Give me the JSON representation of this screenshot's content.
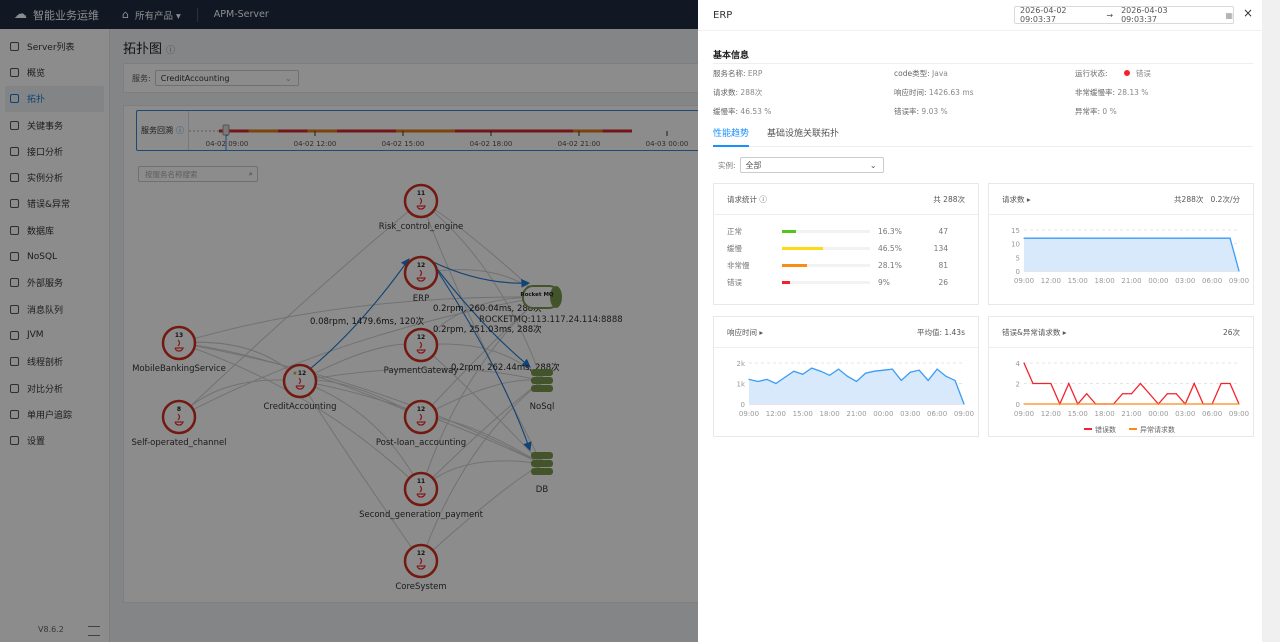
{
  "header": {
    "brand": "智能业务运维",
    "products": "所有产品",
    "app": "APM-Server"
  },
  "sidebar": {
    "items": [
      {
        "label": "Server列表"
      },
      {
        "label": "概览"
      },
      {
        "label": "拓扑",
        "active": true
      },
      {
        "label": "关键事务"
      },
      {
        "label": "接口分析"
      },
      {
        "label": "实例分析"
      },
      {
        "label": "错误&异常"
      },
      {
        "label": "数据库"
      },
      {
        "label": "NoSQL"
      },
      {
        "label": "外部服务"
      },
      {
        "label": "消息队列"
      },
      {
        "label": "JVM"
      },
      {
        "label": "线程剖析"
      },
      {
        "label": "对比分析"
      },
      {
        "label": "单用户追踪"
      },
      {
        "label": "设置"
      }
    ],
    "version": "V8.6.2"
  },
  "main": {
    "title": "拓扑图",
    "service_label": "服务:",
    "service_value": "CreditAccounting",
    "timeline_label": "服务回溯",
    "timeline_ticks": [
      "04-02 09:00",
      "04-02 12:00",
      "04-02 15:00",
      "04-02 18:00",
      "04-02 21:00",
      "04-03 00:00"
    ],
    "search_placeholder": "按服务名称搜索",
    "nodes": [
      {
        "name": "Risk_control_engine",
        "count": "11"
      },
      {
        "name": "ERP",
        "count": "12"
      },
      {
        "name": "PaymentGateway",
        "count": "12"
      },
      {
        "name": "Post-loan_accounting",
        "count": "12"
      },
      {
        "name": "Second_generation_payment",
        "count": "11"
      },
      {
        "name": "CoreSystem",
        "count": "12"
      },
      {
        "name": "MobileBankingService",
        "count": "13"
      },
      {
        "name": "Self-operated_channel",
        "count": "8"
      },
      {
        "name": "CreditAccounting",
        "count": "12"
      }
    ],
    "resources": {
      "mq_icon": "Rocket MQ",
      "mq": "ROCKETMQ:113.117.24.114:8888",
      "nosql": "NoSql",
      "db": "DB"
    },
    "edge_labels": [
      "0.08rpm, 1479.6ms, 120次",
      "0.2rpm, 260.04ms, 288次",
      "0.2rpm, 251.03ms, 288次",
      "0.2rpm, 262.44ms, 288次"
    ]
  },
  "drawer": {
    "title": "ERP",
    "date_start": "2026-04-02 09:03:37",
    "date_end": "2026-04-03 09:03:37",
    "close": "×",
    "basic_title": "基本信息",
    "info": [
      {
        "k": "服务名称:",
        "v": "ERP"
      },
      {
        "k": "code类型:",
        "v": "Java"
      },
      {
        "k": "运行状态:",
        "v": "错误"
      },
      {
        "k": "请求数:",
        "v": "288次"
      },
      {
        "k": "响应时间:",
        "v": "1426.63 ms"
      },
      {
        "k": "非常缓慢率:",
        "v": "28.13 %"
      },
      {
        "k": "缓慢率:",
        "v": "46.53 %"
      },
      {
        "k": "错误率:",
        "v": "9.03 %"
      },
      {
        "k": "异常率:",
        "v": "0 %"
      }
    ],
    "status_color": "#f5222d",
    "tabs": [
      "性能趋势",
      "基础设施关联拓扑"
    ],
    "instance_label": "实例:",
    "instance_value": "全部",
    "req_stats": {
      "title": "请求统计",
      "total": "共 288次",
      "rows": [
        {
          "label": "正常",
          "pct": "16.3%",
          "count": "47",
          "value": 16.3,
          "color": "#52c41a"
        },
        {
          "label": "缓慢",
          "pct": "46.5%",
          "count": "134",
          "value": 46.5,
          "color": "#fadb14"
        },
        {
          "label": "非常慢",
          "pct": "28.1%",
          "count": "81",
          "value": 28.1,
          "color": "#fa8c16"
        },
        {
          "label": "错误",
          "pct": "9%",
          "count": "26",
          "value": 9,
          "color": "#f5222d"
        }
      ]
    }
  },
  "chart_data": [
    {
      "type": "area",
      "title": "请求数",
      "summary": "共288次",
      "rate": "0.2次/分",
      "x": [
        "09:00",
        "10:00",
        "11:00",
        "12:00",
        "13:00",
        "14:00",
        "15:00",
        "16:00",
        "17:00",
        "18:00",
        "19:00",
        "20:00",
        "21:00",
        "22:00",
        "23:00",
        "00:00",
        "01:00",
        "02:00",
        "03:00",
        "04:00",
        "05:00",
        "06:00",
        "07:00",
        "08:00",
        "09:00"
      ],
      "xticks": [
        "09:00",
        "12:00",
        "15:00",
        "18:00",
        "21:00",
        "00:00",
        "03:00",
        "06:00",
        "09:00"
      ],
      "yticks": [
        "0",
        "5",
        "10",
        "15"
      ],
      "ylim": [
        0,
        15
      ],
      "values": [
        12,
        12,
        12,
        12,
        12,
        12,
        12,
        12,
        12,
        12,
        12,
        12,
        12,
        12,
        12,
        12,
        12,
        12,
        12,
        12,
        12,
        12,
        12,
        12,
        0
      ],
      "color": "#3a9cf5"
    },
    {
      "type": "area",
      "title": "响应时间",
      "summary": "平均值: 1.43s",
      "x": [
        "09:00",
        "10:00",
        "11:00",
        "12:00",
        "13:00",
        "14:00",
        "15:00",
        "16:00",
        "17:00",
        "18:00",
        "19:00",
        "20:00",
        "21:00",
        "22:00",
        "23:00",
        "00:00",
        "01:00",
        "02:00",
        "03:00",
        "04:00",
        "05:00",
        "06:00",
        "07:00",
        "08:00",
        "09:00"
      ],
      "xticks": [
        "09:00",
        "12:00",
        "15:00",
        "18:00",
        "21:00",
        "00:00",
        "03:00",
        "06:00",
        "09:00"
      ],
      "yticks": [
        "0",
        "1k",
        "2k"
      ],
      "ylim": [
        0,
        2000
      ],
      "values": [
        1200,
        1100,
        1200,
        1000,
        1300,
        1600,
        1450,
        1750,
        1600,
        1400,
        1700,
        1350,
        1100,
        1500,
        1600,
        1650,
        1700,
        1150,
        1550,
        1650,
        1150,
        1700,
        1350,
        1150,
        0
      ],
      "color": "#3a9cf5"
    },
    {
      "type": "line",
      "title": "错误&异常请求数",
      "summary": "26次",
      "x": [
        "09:00",
        "10:00",
        "11:00",
        "12:00",
        "13:00",
        "14:00",
        "15:00",
        "16:00",
        "17:00",
        "18:00",
        "19:00",
        "20:00",
        "21:00",
        "22:00",
        "23:00",
        "00:00",
        "01:00",
        "02:00",
        "03:00",
        "04:00",
        "05:00",
        "06:00",
        "07:00",
        "08:00",
        "09:00"
      ],
      "xticks": [
        "09:00",
        "12:00",
        "15:00",
        "18:00",
        "21:00",
        "00:00",
        "03:00",
        "06:00",
        "09:00"
      ],
      "yticks": [
        "0",
        "2",
        "4"
      ],
      "ylim": [
        0,
        4
      ],
      "series": [
        {
          "name": "错误数",
          "color": "#f5222d",
          "values": [
            4,
            2,
            2,
            2,
            0,
            2,
            0,
            1,
            0,
            0,
            0,
            1,
            1,
            2,
            1,
            0,
            1,
            1,
            0,
            2,
            0,
            0,
            2,
            2,
            0
          ]
        },
        {
          "name": "异常请求数",
          "color": "#fa8c16",
          "values": [
            0,
            0,
            0,
            0,
            0,
            0,
            0,
            0,
            0,
            0,
            0,
            0,
            0,
            0,
            0,
            0,
            0,
            0,
            0,
            0,
            0,
            0,
            0,
            0,
            0
          ]
        }
      ]
    }
  ]
}
